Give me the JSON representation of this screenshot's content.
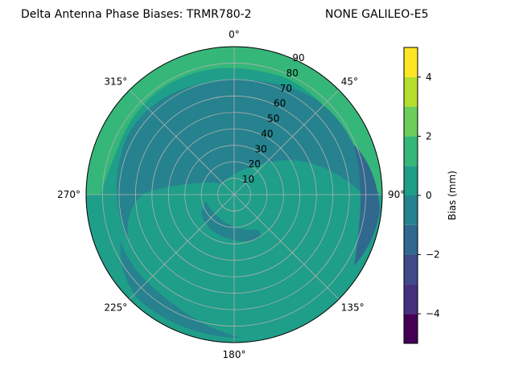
{
  "chart_data": {
    "type": "heatmap",
    "subtype": "polar-contour",
    "title_left": "Delta Antenna Phase Biases: TRMR780-2",
    "title_right": "NONE GALILEO-E5",
    "angle_ticks": [
      "0°",
      "45°",
      "90°",
      "135°",
      "180°",
      "225°",
      "270°",
      "315°"
    ],
    "radial_ticks": [
      "10",
      "20",
      "30",
      "40",
      "50",
      "60",
      "70",
      "80",
      "90"
    ],
    "radial_range": [
      0,
      90
    ],
    "grid": true,
    "colorbar": {
      "label": "Bias (mm)",
      "range": [
        -5,
        5
      ],
      "ticks": [
        "−4",
        "−2",
        "0",
        "2",
        "4"
      ],
      "tick_values": [
        -4,
        -2,
        0,
        2,
        4
      ],
      "levels": [
        -5,
        -4.5,
        -4,
        -3.5,
        -3,
        -2.5,
        -2,
        -1.5,
        -1,
        -0.5,
        0,
        0.5,
        1,
        1.5,
        2,
        2.5,
        3,
        3.5,
        4,
        4.5,
        5
      ],
      "colors": [
        "#440154",
        "#46307e",
        "#3e4a89",
        "#31688e",
        "#26828e",
        "#1f9e89",
        "#35b779",
        "#6ccd5a",
        "#b4de2c",
        "#fde725"
      ]
    },
    "regions": [
      {
        "level": "0 to 1",
        "color": "#1f9e89",
        "description": "background"
      },
      {
        "level": "1 to 2",
        "color": "#35b779",
        "description": "outer ring band"
      },
      {
        "level": "-1 to 0",
        "color": "#26828e",
        "description": "spiral inner ring"
      },
      {
        "level": "-2 to -1",
        "color": "#31688e",
        "description": "east edge lobe"
      }
    ]
  }
}
